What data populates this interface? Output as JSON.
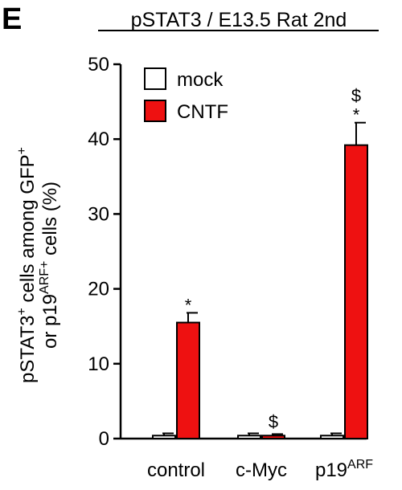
{
  "panel_label": "E",
  "chart_data": {
    "type": "bar",
    "title": "pSTAT3 / E13.5 Rat 2nd",
    "ylabel_line1": "pSTAT3",
    "ylabel_line1_sup": "+",
    "ylabel_line1_rest": " cells among GFP",
    "ylabel_line1_sup2": "+",
    "ylabel_line2": "or p19",
    "ylabel_line2_sup": "ARF",
    "ylabel_line2_sup2": "+",
    "ylabel_line2_rest": " cells (%)",
    "ylim": [
      0,
      50
    ],
    "yticks": [
      "0",
      "10",
      "20",
      "30",
      "40",
      "50"
    ],
    "categories": [
      {
        "main": "control",
        "sup": ""
      },
      {
        "main": "c-Myc",
        "sup": ""
      },
      {
        "main": "p19",
        "sup": "ARF"
      }
    ],
    "series": [
      {
        "name": "mock",
        "color": "#ffffff",
        "values": [
          0.4,
          0.4,
          0.4
        ],
        "errors": [
          0.3,
          0.3,
          0.3
        ],
        "markers": [
          "",
          "",
          ""
        ]
      },
      {
        "name": "CNTF",
        "color": "#ee1111",
        "values": [
          15.5,
          0.4,
          39.2
        ],
        "errors": [
          1.3,
          0.2,
          3.0
        ],
        "markers": [
          "*",
          "$",
          "*"
        ]
      }
    ],
    "extra_markers": [
      "",
      "",
      "$"
    ],
    "grid": false,
    "legend_position": "top-left"
  }
}
